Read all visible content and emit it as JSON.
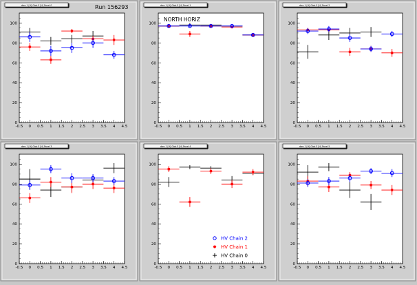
{
  "run_label": "Run 156293",
  "legend": {
    "entries": [
      {
        "label": "HV Chain 2",
        "color": "#0000ff",
        "marker": "circle"
      },
      {
        "label": "HV Chain 1",
        "color": "#ff0000",
        "marker": "star"
      },
      {
        "label": "HV Chain 0",
        "color": "#000000",
        "marker": "cross"
      }
    ]
  },
  "chart_data": [
    {
      "type": "scatter",
      "title": "dem 1 [H] Glob E [H] Panel 0",
      "annotation": "",
      "xlim": [
        -0.5,
        4.5
      ],
      "ylim": [
        0,
        110
      ],
      "xticks": [
        -0.5,
        0,
        0.5,
        1,
        1.5,
        2,
        2.5,
        3,
        3.5,
        4,
        4.5
      ],
      "yticks": [
        0,
        20,
        40,
        60,
        80,
        100
      ],
      "series": [
        {
          "name": "HV Chain 2",
          "color": "#0000ff",
          "marker": "circle",
          "x": [
            0,
            1,
            2,
            3,
            4
          ],
          "y": [
            86,
            72,
            75,
            80,
            68
          ],
          "yerr": [
            5,
            5,
            5,
            5,
            4
          ]
        },
        {
          "name": "HV Chain 1",
          "color": "#ff0000",
          "marker": "star",
          "x": [
            0,
            1,
            2,
            3,
            4
          ],
          "y": [
            76,
            63,
            92,
            84,
            83
          ],
          "yerr": [
            4,
            4,
            2,
            3,
            5
          ]
        },
        {
          "name": "HV Chain 0",
          "color": "#000000",
          "marker": "cross",
          "x": [
            0,
            1,
            2,
            3,
            4
          ],
          "y": [
            91,
            82,
            84,
            87,
            0
          ],
          "yerr": [
            4,
            4,
            4,
            5,
            0
          ]
        }
      ]
    },
    {
      "type": "scatter",
      "title": "dem 1 [H] Glob E [H] Panel 1",
      "annotation": "NORTH HORIZ",
      "xlim": [
        -0.5,
        4.5
      ],
      "ylim": [
        0,
        110
      ],
      "xticks": [
        -0.5,
        0,
        0.5,
        1,
        1.5,
        2,
        2.5,
        3,
        3.5,
        4,
        4.5
      ],
      "yticks": [
        0,
        20,
        40,
        60,
        80,
        100
      ],
      "series": [
        {
          "name": "HV Chain 2",
          "color": "#0000ff",
          "marker": "circle",
          "x": [
            0,
            1,
            2,
            3,
            4
          ],
          "y": [
            97,
            97,
            97,
            97,
            88
          ],
          "yerr": [
            1,
            1,
            1,
            1,
            1
          ]
        },
        {
          "name": "HV Chain 1",
          "color": "#ff0000",
          "marker": "star",
          "x": [
            0,
            1,
            2,
            3,
            4
          ],
          "y": [
            97,
            89,
            97,
            96,
            88
          ],
          "yerr": [
            2,
            3,
            1,
            1,
            1
          ]
        },
        {
          "name": "HV Chain 0",
          "color": "#000000",
          "marker": "cross",
          "x": [
            0,
            1,
            2,
            3,
            4
          ],
          "y": [
            97,
            98,
            98,
            97,
            88
          ],
          "yerr": [
            1,
            2,
            1,
            1,
            1
          ]
        }
      ]
    },
    {
      "type": "scatter",
      "title": "dem 1 [H] Glob E [H] Panel 2",
      "annotation": "",
      "xlim": [
        -0.5,
        4.5
      ],
      "ylim": [
        0,
        110
      ],
      "xticks": [
        -0.5,
        0,
        0.5,
        1,
        1.5,
        2,
        2.5,
        3,
        3.5,
        4,
        4.5
      ],
      "yticks": [
        0,
        20,
        40,
        60,
        80,
        100
      ],
      "series": [
        {
          "name": "HV Chain 2",
          "color": "#0000ff",
          "marker": "circle",
          "x": [
            0,
            1,
            2,
            3,
            4
          ],
          "y": [
            92,
            94,
            85,
            74,
            89
          ],
          "yerr": [
            3,
            3,
            4,
            3,
            3
          ]
        },
        {
          "name": "HV Chain 1",
          "color": "#ff0000",
          "marker": "star",
          "x": [
            0,
            1,
            2,
            3,
            4
          ],
          "y": [
            93,
            93,
            71,
            74,
            70
          ],
          "yerr": [
            2,
            2,
            4,
            3,
            4
          ]
        },
        {
          "name": "HV Chain 0",
          "color": "#000000",
          "marker": "cross",
          "x": [
            0,
            1,
            2,
            3,
            4
          ],
          "y": [
            71,
            88,
            90,
            91,
            0
          ],
          "yerr": [
            7,
            5,
            5,
            5,
            0
          ]
        }
      ]
    },
    {
      "type": "scatter",
      "title": "dem 1 [H] Glob E [H] Panel 3",
      "annotation": "",
      "xlim": [
        -0.5,
        4.5
      ],
      "ylim": [
        0,
        110
      ],
      "xticks": [
        -0.5,
        0,
        0.5,
        1,
        1.5,
        2,
        2.5,
        3,
        3.5,
        4,
        4.5
      ],
      "yticks": [
        0,
        20,
        40,
        60,
        80,
        100
      ],
      "series": [
        {
          "name": "HV Chain 2",
          "color": "#0000ff",
          "marker": "circle",
          "x": [
            0,
            1,
            2,
            3,
            4
          ],
          "y": [
            79,
            95,
            86,
            86,
            83
          ],
          "yerr": [
            5,
            4,
            5,
            4,
            4
          ]
        },
        {
          "name": "HV Chain 1",
          "color": "#ff0000",
          "marker": "star",
          "x": [
            0,
            1,
            2,
            3,
            4
          ],
          "y": [
            66,
            82,
            77,
            80,
            76
          ],
          "yerr": [
            5,
            5,
            6,
            5,
            5
          ]
        },
        {
          "name": "HV Chain 0",
          "color": "#000000",
          "marker": "cross",
          "x": [
            0,
            1,
            2,
            3,
            4
          ],
          "y": [
            85,
            74,
            77,
            84,
            96
          ],
          "yerr": [
            10,
            7,
            5,
            5,
            5
          ]
        }
      ]
    },
    {
      "type": "scatter",
      "title": "dem 1 [H] Glob E [H] Panel 4",
      "annotation": "",
      "xlim": [
        -0.5,
        4.5
      ],
      "ylim": [
        0,
        110
      ],
      "xticks": [
        -0.5,
        0,
        0.5,
        1,
        1.5,
        2,
        2.5,
        3,
        3.5,
        4,
        4.5
      ],
      "yticks": [
        0,
        20,
        40,
        60,
        80,
        100
      ],
      "series": [
        {
          "name": "HV Chain 2",
          "color": "#0000ff",
          "marker": "circle",
          "x": [],
          "y": [],
          "yerr": []
        },
        {
          "name": "HV Chain 1",
          "color": "#ff0000",
          "marker": "star",
          "x": [
            0,
            1,
            2,
            3,
            4
          ],
          "y": [
            95,
            62,
            93,
            80,
            92
          ],
          "yerr": [
            3,
            5,
            3,
            4,
            3
          ]
        },
        {
          "name": "HV Chain 0",
          "color": "#000000",
          "marker": "cross",
          "x": [
            0,
            1,
            2,
            3,
            4
          ],
          "y": [
            82,
            97,
            96,
            84,
            91
          ],
          "yerr": [
            5,
            2,
            2,
            4,
            2
          ]
        }
      ]
    },
    {
      "type": "scatter",
      "title": "dem 1 [H] Glob E [H] Panel 5",
      "annotation": "",
      "xlim": [
        -0.5,
        4.5
      ],
      "ylim": [
        0,
        110
      ],
      "xticks": [
        -0.5,
        0,
        0.5,
        1,
        1.5,
        2,
        2.5,
        3,
        3.5,
        4,
        4.5
      ],
      "yticks": [
        0,
        20,
        40,
        60,
        80,
        100
      ],
      "series": [
        {
          "name": "HV Chain 2",
          "color": "#0000ff",
          "marker": "circle",
          "x": [
            0,
            1,
            2,
            3,
            4
          ],
          "y": [
            81,
            83,
            86,
            93,
            91
          ],
          "yerr": [
            4,
            4,
            4,
            3,
            4
          ]
        },
        {
          "name": "HV Chain 1",
          "color": "#ff0000",
          "marker": "star",
          "x": [
            0,
            1,
            2,
            3,
            4
          ],
          "y": [
            83,
            77,
            89,
            79,
            74
          ],
          "yerr": [
            5,
            5,
            3,
            4,
            5
          ]
        },
        {
          "name": "HV Chain 0",
          "color": "#000000",
          "marker": "cross",
          "x": [
            0,
            1,
            2,
            3,
            4
          ],
          "y": [
            92,
            97,
            74,
            62,
            0
          ],
          "yerr": [
            7,
            4,
            8,
            8,
            0
          ]
        }
      ]
    }
  ]
}
